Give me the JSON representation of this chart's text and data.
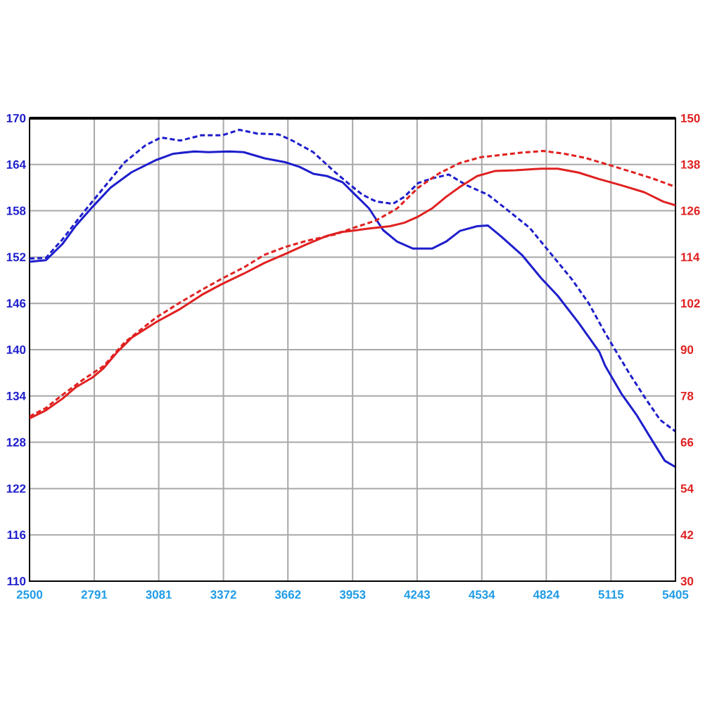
{
  "chart_data": {
    "type": "line",
    "xlim": [
      2500,
      5405
    ],
    "xticks": [
      2500,
      2791,
      3081,
      3372,
      3662,
      3953,
      4243,
      4534,
      4824,
      5115,
      5405
    ],
    "ylim": [
      110,
      170
    ],
    "yticks": [
      110,
      116,
      122,
      128,
      134,
      140,
      146,
      152,
      158,
      164,
      170
    ],
    "y2lim": [
      30,
      150
    ],
    "y2ticks": [
      30,
      42,
      54,
      66,
      78,
      90,
      102,
      114,
      126,
      138,
      150
    ],
    "grid": true,
    "marker": "none",
    "series": [
      {
        "color": "#1e1ecc",
        "line_style": "solid",
        "axis": "y",
        "x": [
          2500,
          2574,
          2648,
          2709,
          2783,
          2864,
          2959,
          3071,
          3147,
          3242,
          3304,
          3399,
          3463,
          3557,
          3649,
          3714,
          3776,
          3838,
          3908,
          3964,
          4027,
          4090,
          4153,
          4225,
          4310,
          4373,
          4436,
          4513,
          4561,
          4624,
          4717,
          4800,
          4875,
          4969,
          5063,
          5089,
          5162,
          5231,
          5301,
          5357,
          5405
        ],
        "values": [
          151.4,
          151.6,
          153.7,
          156.1,
          158.5,
          161.0,
          163.0,
          164.6,
          165.4,
          165.7,
          165.6,
          165.7,
          165.6,
          164.8,
          164.3,
          163.7,
          162.8,
          162.5,
          161.7,
          160.1,
          158.3,
          155.5,
          154.0,
          153.1,
          153.1,
          154.0,
          155.4,
          156.0,
          156.1,
          154.6,
          152.2,
          149.3,
          147.0,
          143.5,
          139.7,
          137.9,
          134.3,
          131.5,
          128.2,
          125.6,
          124.8
        ]
      },
      {
        "color": "#1e1ecc",
        "line_style": "dashed",
        "axis": "y",
        "x": [
          2500,
          2574,
          2648,
          2740,
          2834,
          2928,
          3022,
          3091,
          3179,
          3274,
          3368,
          3444,
          3525,
          3620,
          3682,
          3776,
          3870,
          3932,
          3996,
          4059,
          4134,
          4185,
          4248,
          4310,
          4385,
          4466,
          4561,
          4654,
          4749,
          4843,
          4937,
          5013,
          5088,
          5127,
          5196,
          5265,
          5336,
          5405
        ],
        "values": [
          151.8,
          151.9,
          154.3,
          157.7,
          161.0,
          164.3,
          166.5,
          167.5,
          167.1,
          167.8,
          167.8,
          168.5,
          168.0,
          167.9,
          167.1,
          165.6,
          163.1,
          161.6,
          160.1,
          159.2,
          158.9,
          159.8,
          161.6,
          162.2,
          162.7,
          161.3,
          160.1,
          158.0,
          155.8,
          152.5,
          149.2,
          146.1,
          142.2,
          140.3,
          137.0,
          133.9,
          130.9,
          129.4
        ]
      },
      {
        "color": "#e02020",
        "line_style": "solid",
        "axis": "y2",
        "x": [
          2500,
          2574,
          2648,
          2709,
          2783,
          2833,
          2896,
          2928,
          2959,
          3071,
          3179,
          3274,
          3361,
          3463,
          3557,
          3649,
          3745,
          3838,
          3902,
          3932,
          4027,
          4121,
          4185,
          4248,
          4310,
          4373,
          4436,
          4513,
          4592,
          4686,
          4800,
          4875,
          4969,
          5063,
          5162,
          5265,
          5349,
          5405
        ],
        "values": [
          72.2,
          74.3,
          77.3,
          80.3,
          82.8,
          85.2,
          89.5,
          91.3,
          93.1,
          97.2,
          100.6,
          104.2,
          106.9,
          109.7,
          112.5,
          114.8,
          117.3,
          119.5,
          120.5,
          120.7,
          121.4,
          122.0,
          122.9,
          124.5,
          126.6,
          129.6,
          132.2,
          135.0,
          136.3,
          136.5,
          136.9,
          136.9,
          135.9,
          134.2,
          132.6,
          130.8,
          128.4,
          127.4
        ]
      },
      {
        "color": "#e02020",
        "line_style": "dashed",
        "axis": "y2",
        "x": [
          2500,
          2574,
          2648,
          2740,
          2834,
          2928,
          3071,
          3179,
          3274,
          3368,
          3463,
          3557,
          3649,
          3745,
          3870,
          3964,
          4059,
          4153,
          4248,
          4342,
          4436,
          4530,
          4624,
          4717,
          4811,
          4905,
          5000,
          5094,
          5196,
          5301,
          5405
        ],
        "values": [
          72.7,
          74.9,
          78.3,
          82.2,
          85.8,
          91.9,
          98.4,
          102.3,
          105.5,
          108.5,
          111.3,
          114.6,
          116.6,
          118.2,
          119.8,
          121.7,
          123.5,
          126.6,
          132.0,
          135.7,
          138.4,
          139.9,
          140.5,
          141.1,
          141.5,
          140.8,
          139.7,
          138.1,
          136.3,
          134.4,
          132.2
        ]
      }
    ]
  }
}
